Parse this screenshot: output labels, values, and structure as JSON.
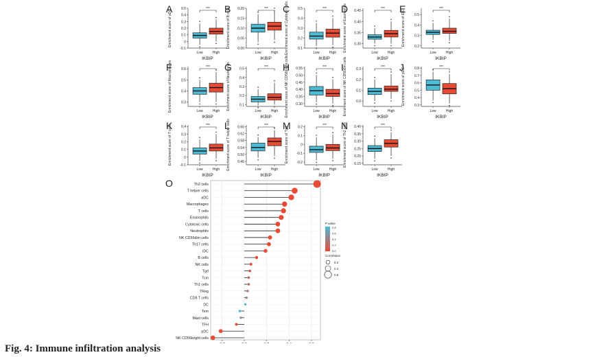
{
  "caption": "Fig. 4: Immune infiltration analysis",
  "colors": {
    "low": "#4dbbd5",
    "high": "#e64b35",
    "lollipop_high": "#e64b35",
    "lollipop_low": "#4dbbd5"
  },
  "box_panels": [
    {
      "letter": "A",
      "ylabel": "Enrichment score of aDC",
      "xlabel": "IKBIP",
      "groups": [
        "Low",
        "High"
      ],
      "sig": "***",
      "ticks": [
        "0.5",
        "0.4",
        "0.3",
        "0.2",
        "0.1",
        "0",
        "-0.1"
      ],
      "ylim": [
        -0.1,
        0.5
      ],
      "low": {
        "q1": 0.05,
        "med": 0.09,
        "q3": 0.13,
        "wlo": -0.05,
        "whi": 0.27
      },
      "high": {
        "q1": 0.11,
        "med": 0.15,
        "q3": 0.2,
        "wlo": 0.0,
        "whi": 0.33
      }
    },
    {
      "letter": "B",
      "ylabel": "Enrichment score of B cells",
      "xlabel": "IKBIP",
      "groups": [
        "Low",
        "High"
      ],
      "sig": "***",
      "ticks": [
        "0.20",
        "0.15",
        "0.10",
        "0.05",
        "0.00"
      ],
      "ylim": [
        0.0,
        0.2
      ],
      "low": {
        "q1": 0.08,
        "med": 0.1,
        "q3": 0.12,
        "wlo": 0.03,
        "whi": 0.17
      },
      "high": {
        "q1": 0.09,
        "med": 0.11,
        "q3": 0.13,
        "wlo": 0.04,
        "whi": 0.19
      }
    },
    {
      "letter": "C",
      "ylabel": "Enrichment score of Cytotoxic cells",
      "xlabel": "IKBIP",
      "groups": [
        "Low",
        "High"
      ],
      "sig": "***",
      "ticks": [
        "0.5",
        "0.4",
        "0.3",
        "0.2",
        "0.1"
      ],
      "ylim": [
        0.1,
        0.5
      ],
      "low": {
        "q1": 0.19,
        "med": 0.22,
        "q3": 0.26,
        "wlo": 0.12,
        "whi": 0.35
      },
      "high": {
        "q1": 0.21,
        "med": 0.25,
        "q3": 0.29,
        "wlo": 0.13,
        "whi": 0.4
      }
    },
    {
      "letter": "D",
      "ylabel": "Enrichment score of Eosinophils",
      "xlabel": "IKBIP",
      "groups": [
        "Low",
        "High"
      ],
      "sig": "***",
      "ticks": [
        "0.45",
        "0.40",
        "0.35",
        "0.30"
      ],
      "ylim": [
        0.28,
        0.46
      ],
      "low": {
        "q1": 0.32,
        "med": 0.33,
        "q3": 0.34,
        "wlo": 0.3,
        "whi": 0.37
      },
      "high": {
        "q1": 0.33,
        "med": 0.345,
        "q3": 0.36,
        "wlo": 0.3,
        "whi": 0.4
      }
    },
    {
      "letter": "E",
      "ylabel": "Enrichment score of iDC",
      "xlabel": "IKBIP",
      "groups": [
        "Low",
        "High"
      ],
      "sig": "***",
      "ticks": [
        "0.5",
        "0.4",
        "0.3",
        "0.2"
      ],
      "ylim": [
        0.18,
        0.56
      ],
      "low": {
        "q1": 0.31,
        "med": 0.33,
        "q3": 0.35,
        "wlo": 0.26,
        "whi": 0.42
      },
      "high": {
        "q1": 0.32,
        "med": 0.34,
        "q3": 0.37,
        "wlo": 0.25,
        "whi": 0.46
      }
    },
    {
      "letter": "F",
      "ylabel": "Enrichment score of Macrophages",
      "xlabel": "IKBIP",
      "groups": [
        "Low",
        "High"
      ],
      "sig": "***",
      "ticks": [
        "0.6",
        "0.5",
        "0.4",
        "0.3"
      ],
      "ylim": [
        0.26,
        0.62
      ],
      "low": {
        "q1": 0.37,
        "med": 0.4,
        "q3": 0.43,
        "wlo": 0.3,
        "whi": 0.5
      },
      "high": {
        "q1": 0.39,
        "med": 0.43,
        "q3": 0.47,
        "wlo": 0.3,
        "whi": 0.57
      }
    },
    {
      "letter": "G",
      "ylabel": "Enrichment score of Neutrophils",
      "xlabel": "IKBIP",
      "groups": [
        "Low",
        "High"
      ],
      "sig": "***",
      "ticks": [
        "0.5",
        "0.4",
        "0.3",
        "0.2",
        "0.1"
      ],
      "ylim": [
        0.08,
        0.52
      ],
      "low": {
        "q1": 0.13,
        "med": 0.16,
        "q3": 0.19,
        "wlo": 0.09,
        "whi": 0.27
      },
      "high": {
        "q1": 0.15,
        "med": 0.18,
        "q3": 0.22,
        "wlo": 0.1,
        "whi": 0.34
      }
    },
    {
      "letter": "H",
      "ylabel": "Enrichment score of NK CD56bright cells",
      "xlabel": "IKBIP",
      "groups": [
        "Low",
        "High"
      ],
      "sig": "***",
      "ticks": [
        "0.55",
        "0.50",
        "0.45",
        "0.40",
        "0.35",
        "0.30"
      ],
      "ylim": [
        0.28,
        0.56
      ],
      "low": {
        "q1": 0.36,
        "med": 0.39,
        "q3": 0.42,
        "wlo": 0.31,
        "whi": 0.5
      },
      "high": {
        "q1": 0.35,
        "med": 0.37,
        "q3": 0.4,
        "wlo": 0.3,
        "whi": 0.47
      }
    },
    {
      "letter": "I",
      "ylabel": "Enrichment score of NK CD56dim cells",
      "xlabel": "IKBIP",
      "groups": [
        "Low",
        "High"
      ],
      "sig": "***",
      "ticks": [
        "0.3",
        "0.2",
        "0.1",
        "0.0"
      ],
      "ylim": [
        -0.05,
        0.32
      ],
      "low": {
        "q1": 0.06,
        "med": 0.09,
        "q3": 0.12,
        "wlo": 0.0,
        "whi": 0.2
      },
      "high": {
        "q1": 0.09,
        "med": 0.11,
        "q3": 0.14,
        "wlo": 0.02,
        "whi": 0.25
      }
    },
    {
      "letter": "J",
      "ylabel": "Enrichment score of pDC",
      "xlabel": "IKBIP",
      "groups": [
        "Low",
        "High"
      ],
      "sig": "***",
      "ticks": [
        "0.8",
        "0.7",
        "0.6",
        "0.5",
        "0.4",
        "0.3"
      ],
      "ylim": [
        0.28,
        0.82
      ],
      "low": {
        "q1": 0.5,
        "med": 0.57,
        "q3": 0.64,
        "wlo": 0.36,
        "whi": 0.75
      },
      "high": {
        "q1": 0.45,
        "med": 0.52,
        "q3": 0.59,
        "wlo": 0.32,
        "whi": 0.72
      }
    },
    {
      "letter": "K",
      "ylabel": "Enrichment score of T cells",
      "xlabel": "IKBIP",
      "groups": [
        "Low",
        "High"
      ],
      "sig": "***",
      "ticks": [
        "0.4",
        "0.3",
        "0.2",
        "0.1",
        "0",
        "-0.1"
      ],
      "ylim": [
        -0.1,
        0.42
      ],
      "low": {
        "q1": 0.04,
        "med": 0.08,
        "q3": 0.12,
        "wlo": -0.05,
        "whi": 0.23
      },
      "high": {
        "q1": 0.08,
        "med": 0.12,
        "q3": 0.17,
        "wlo": -0.02,
        "whi": 0.3
      }
    },
    {
      "letter": "L",
      "ylabel": "Enrichment score of T helper cells",
      "xlabel": "IKBIP",
      "groups": [
        "Low",
        "High"
      ],
      "sig": "***",
      "ticks": [
        "0.66",
        "0.62",
        "0.58",
        "0.54",
        "0.50",
        "0.46"
      ],
      "ylim": [
        0.44,
        0.67
      ],
      "low": {
        "q1": 0.52,
        "med": 0.54,
        "q3": 0.565,
        "wlo": 0.48,
        "whi": 0.6
      },
      "high": {
        "q1": 0.55,
        "med": 0.575,
        "q3": 0.595,
        "wlo": 0.49,
        "whi": 0.64
      }
    },
    {
      "letter": "M",
      "ylabel": "Enrichment score of Tgd",
      "xlabel": "IKBIP",
      "groups": [
        "Low",
        "High"
      ],
      "sig": "***",
      "ticks": [
        "0.2",
        "0.1",
        "0",
        "-0.1",
        "-0.2"
      ],
      "ylim": [
        -0.23,
        0.22
      ],
      "low": {
        "q1": -0.09,
        "med": -0.06,
        "q3": -0.02,
        "wlo": -0.18,
        "whi": 0.08
      },
      "high": {
        "q1": -0.07,
        "med": -0.04,
        "q3": 0.0,
        "wlo": -0.16,
        "whi": 0.11
      }
    },
    {
      "letter": "N",
      "ylabel": "Enrichment score of Th2 cells",
      "xlabel": "IKBIP",
      "groups": [
        "Low",
        "High"
      ],
      "sig": "***",
      "ticks": [
        "0.40",
        "0.35",
        "0.30",
        "0.25",
        "0.20",
        "0.15"
      ],
      "ylim": [
        0.14,
        0.41
      ],
      "low": {
        "q1": 0.23,
        "med": 0.25,
        "q3": 0.27,
        "wlo": 0.18,
        "whi": 0.32
      },
      "high": {
        "q1": 0.26,
        "med": 0.285,
        "q3": 0.31,
        "wlo": 0.2,
        "whi": 0.36
      }
    }
  ],
  "lollipop": {
    "letter": "O",
    "xlabel": "Correlation",
    "xticks": [
      "-0.2",
      "0.0",
      "0.2",
      "0.4",
      "0.6"
    ],
    "xlim": [
      -0.3,
      0.68
    ],
    "legend_pvalue_title": "P value",
    "legend_pvalue_ticks": [
      "0.8",
      "0.6",
      "0.4",
      "0.2",
      "0.0"
    ],
    "legend_corr_title": "Correlation",
    "legend_corr_ticks": [
      "0.2",
      "0.4",
      "0.6"
    ]
  },
  "chart_data": {
    "type": "scatter",
    "xlabel": "Correlation",
    "xlim": [
      -0.3,
      0.68
    ],
    "categories": [
      "Th2 cells",
      "T helper cells",
      "aDC",
      "Macrophages",
      "T cells",
      "Eosinophils",
      "Cytotoxic cells",
      "Neutrophils",
      "NK CD56dim cells",
      "Th17 cells",
      "iDC",
      "B cells",
      "NK cells",
      "Tgd",
      "Tcm",
      "Th1 cells",
      "TReg",
      "CD8 T cells",
      "DC",
      "Tem",
      "Mast cells",
      "TFH",
      "pDC",
      "NK CD56bright cells"
    ],
    "values": [
      0.65,
      0.45,
      0.42,
      0.36,
      0.35,
      0.33,
      0.3,
      0.3,
      0.23,
      0.22,
      0.19,
      0.11,
      0.06,
      0.05,
      0.04,
      0.04,
      0.03,
      0.02,
      0.01,
      -0.04,
      -0.03,
      -0.07,
      -0.21,
      -0.28
    ],
    "pvalues": [
      0.0,
      0.0,
      0.0,
      0.0,
      0.0,
      0.0,
      0.0,
      0.0,
      0.0,
      0.0,
      0.0,
      0.0,
      0.05,
      0.15,
      0.25,
      0.3,
      0.35,
      0.45,
      0.8,
      0.85,
      0.55,
      0.05,
      0.0,
      0.0
    ]
  }
}
